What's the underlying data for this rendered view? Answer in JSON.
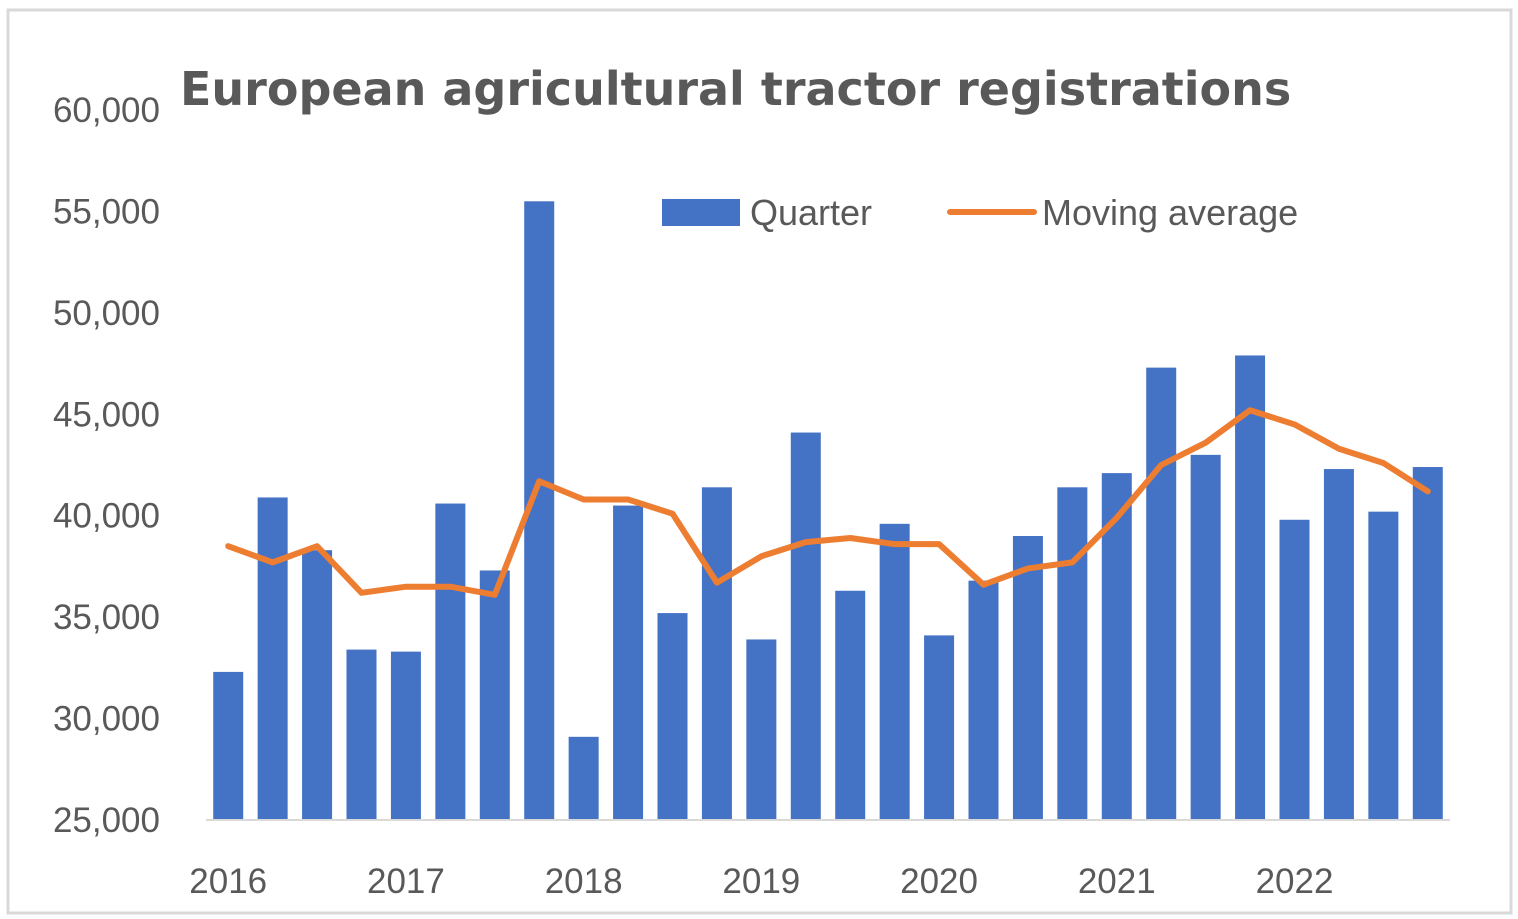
{
  "chart_data": {
    "type": "bar+line",
    "title": "European agricultural tractor registrations",
    "xlabel": "",
    "ylabel": "",
    "ylim": [
      25000,
      60000
    ],
    "yticks": [
      "25,000",
      "30,000",
      "35,000",
      "40,000",
      "45,000",
      "50,000",
      "55,000",
      "60,000"
    ],
    "ytick_values": [
      25000,
      30000,
      35000,
      40000,
      45000,
      50000,
      55000,
      60000
    ],
    "xtick_labels": [
      "2016",
      "2017",
      "2018",
      "2019",
      "2020",
      "2021",
      "2022"
    ],
    "quarters_per_year": 4,
    "grid": false,
    "legend": "top-right",
    "colors": {
      "Quarter": "#4472c4",
      "Moving average": "#ed7d31",
      "text": "#595959",
      "axis": "#d9d9d9",
      "frame": "#d9d9d9"
    },
    "series": [
      {
        "name": "Quarter",
        "type": "bar",
        "values": [
          32300,
          40900,
          38300,
          33400,
          33300,
          40600,
          37300,
          55500,
          29100,
          40500,
          35200,
          41400,
          33900,
          44100,
          36300,
          39600,
          34100,
          36800,
          39000,
          41400,
          42100,
          47300,
          43000,
          47900,
          39800,
          42300,
          40200,
          42400
        ]
      },
      {
        "name": "Moving average",
        "type": "line",
        "values": [
          38500,
          37700,
          38500,
          36200,
          36500,
          36500,
          36100,
          41700,
          40800,
          40800,
          40100,
          36700,
          38000,
          38700,
          38900,
          38600,
          38600,
          36600,
          37400,
          37700,
          39900,
          42500,
          43600,
          45200,
          44500,
          43300,
          42600,
          41200
        ]
      }
    ]
  }
}
